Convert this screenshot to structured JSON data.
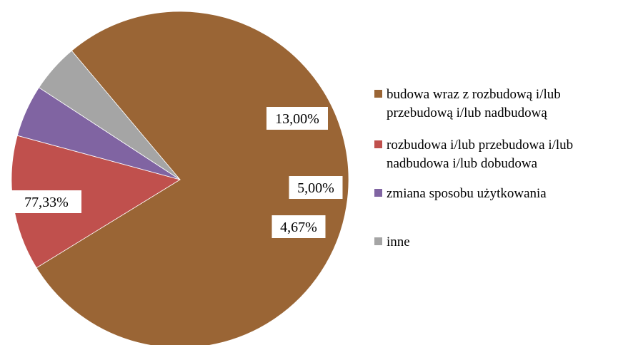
{
  "chart_data": {
    "type": "pie",
    "title": "",
    "slices": [
      {
        "label": "budowa wraz z rozbudową i/lub przebudową i/lub nadbudową",
        "legend_lines": [
          "budowa wraz z rozbudową i/lub",
          "przebudową i/lub nadbudową"
        ],
        "value": 77.33,
        "display": "77,33%",
        "color": "#9A6535"
      },
      {
        "label": "rozbudowa i/lub przebudowa i/lub nadbudowa i/lub dobudowa",
        "legend_lines": [
          "rozbudowa i/lub przebudowa i/lub",
          "nadbudowa i/lub dobudowa"
        ],
        "value": 13.0,
        "display": "13,00%",
        "color": "#C0504D"
      },
      {
        "label": "zmiana sposobu użytkowania",
        "legend_lines": [
          "zmiana sposobu użytkowania"
        ],
        "value": 5.0,
        "display": "5,00%",
        "color": "#8064A2"
      },
      {
        "label": "inne",
        "legend_lines": [
          "inne"
        ],
        "value": 4.67,
        "display": "4,67%",
        "color": "#A5A5A5"
      }
    ],
    "legend_position": "right"
  }
}
